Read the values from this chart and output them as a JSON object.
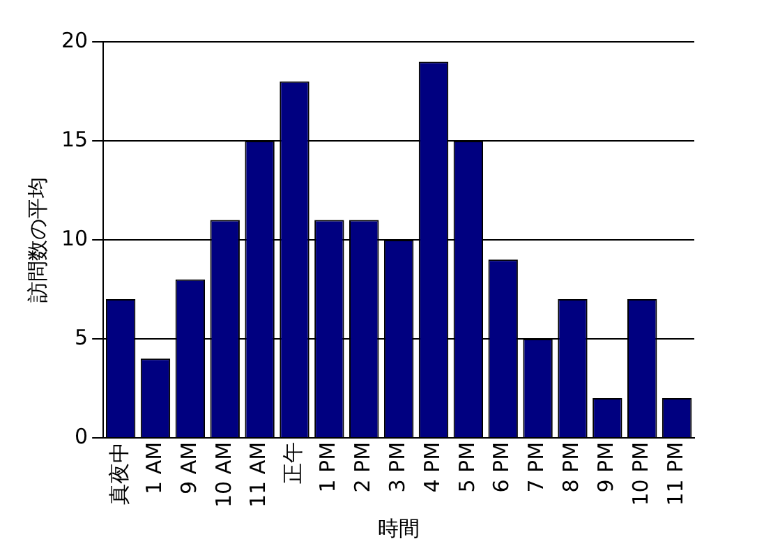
{
  "chart_data": {
    "type": "bar",
    "xlabel": "時間",
    "ylabel": "訪問数の平均",
    "categories": [
      "真夜中",
      "1 AM",
      "9 AM",
      "10 AM",
      "11 AM",
      "正午",
      "1 PM",
      "2 PM",
      "3 PM",
      "4 PM",
      "5 PM",
      "6 PM",
      "7 PM",
      "8 PM",
      "9 PM",
      "10 PM",
      "11 PM"
    ],
    "values": [
      7,
      4,
      8,
      11,
      15,
      18,
      11,
      11,
      10,
      19,
      15,
      9,
      5,
      7,
      2,
      7,
      2
    ],
    "color": "#000080",
    "ylim": [
      0,
      20
    ],
    "yticks": [
      0,
      5,
      10,
      15,
      20
    ],
    "grid": "y",
    "legend": false
  }
}
